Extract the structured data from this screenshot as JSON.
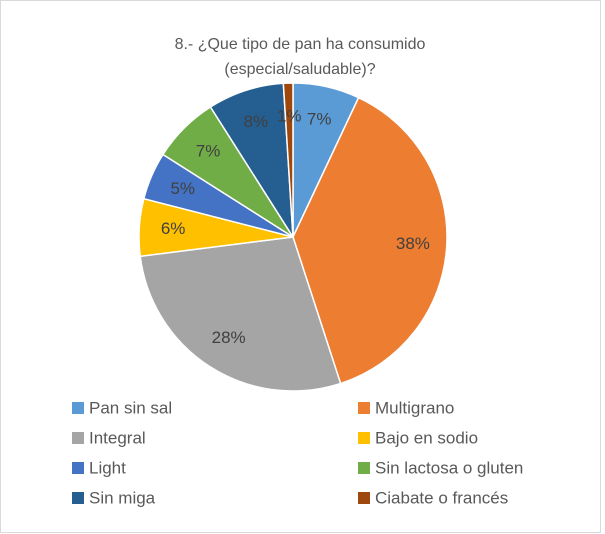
{
  "chart_data": {
    "type": "pie",
    "title": "8.- ¿Que tipo de pan ha consumido (especial/saludable)?",
    "categories": [
      "Pan sin sal",
      "Multigrano",
      "Integral",
      "Bajo en sodio",
      "Light",
      "Sin lactosa o gluten",
      "Sin miga",
      "Ciabate o francés"
    ],
    "values": [
      7,
      38,
      28,
      6,
      5,
      7,
      8,
      1
    ],
    "value_labels": [
      "7%",
      "38%",
      "28%",
      "6%",
      "5%",
      "7%",
      "8%",
      "1%"
    ],
    "colors": [
      "#5b9bd5",
      "#ed7d31",
      "#a5a5a5",
      "#ffc000",
      "#4472c4",
      "#70ad47",
      "#255e91",
      "#9e480e"
    ]
  }
}
